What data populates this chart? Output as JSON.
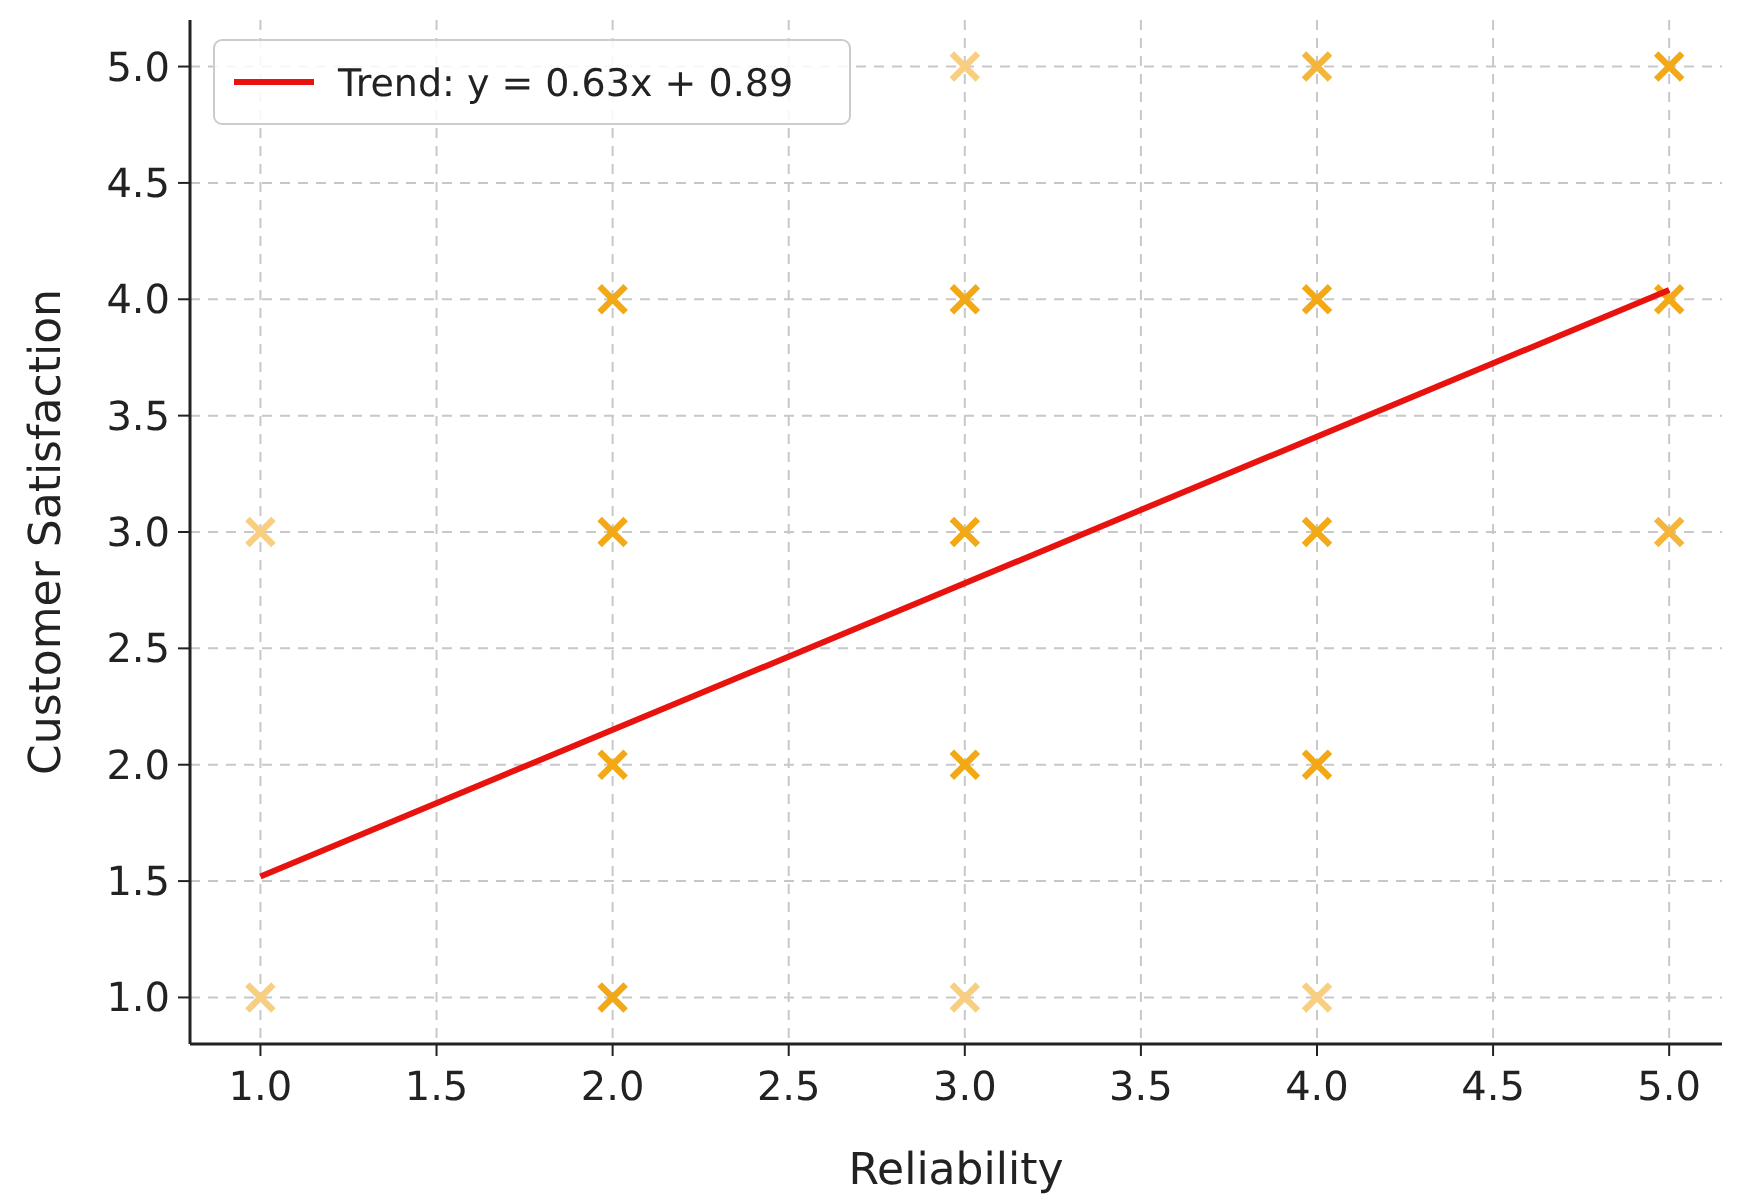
{
  "chart_data": {
    "type": "scatter",
    "xlabel": "Reliability",
    "ylabel": "Customer Satisfaction",
    "xlim": [
      0.8,
      5.15
    ],
    "ylim": [
      0.8,
      5.2
    ],
    "xticks": [
      {
        "value": 1,
        "label": "1.0"
      },
      {
        "value": 1.5,
        "label": "1.5"
      },
      {
        "value": 2,
        "label": "2.0"
      },
      {
        "value": 2.5,
        "label": "2.5"
      },
      {
        "value": 3,
        "label": "3.0"
      },
      {
        "value": 3.5,
        "label": "3.5"
      },
      {
        "value": 4,
        "label": "4.0"
      },
      {
        "value": 4.5,
        "label": "4.5"
      },
      {
        "value": 5,
        "label": "5.0"
      }
    ],
    "yticks": [
      {
        "value": 1,
        "label": "1.0"
      },
      {
        "value": 1.5,
        "label": "1.5"
      },
      {
        "value": 2,
        "label": "2.0"
      },
      {
        "value": 2.5,
        "label": "2.5"
      },
      {
        "value": 3,
        "label": "3.0"
      },
      {
        "value": 3.5,
        "label": "3.5"
      },
      {
        "value": 4,
        "label": "4.0"
      },
      {
        "value": 4.5,
        "label": "4.5"
      },
      {
        "value": 5,
        "label": "5.0"
      }
    ],
    "grid": true,
    "legend": "top left",
    "marker": "cross",
    "series": [
      {
        "x": [
          1,
          1,
          2,
          2,
          2,
          2,
          3,
          3,
          3,
          3,
          3,
          4,
          4,
          4,
          4,
          4,
          5,
          5,
          5
        ],
        "values": [
          3,
          1,
          4,
          3,
          2,
          1,
          5,
          4,
          3,
          2,
          1,
          5,
          4,
          3,
          2,
          1,
          5,
          4,
          3
        ],
        "colors": [
          "#f8cf80",
          "#f8cf80",
          "#f2a915",
          "#f2a915",
          "#f2a915",
          "#f2a915",
          "#f8cf80",
          "#f2a915",
          "#f2a915",
          "#f2a915",
          "#f8cf80",
          "#f4b63a",
          "#f2a915",
          "#f2a915",
          "#f2a915",
          "#f8cf80",
          "#f2a915",
          "#f2a915",
          "#f4b63a"
        ]
      },
      {
        "type": "line",
        "name": "Trend: y = 0.63x + 0.89",
        "color": "#e8120f",
        "x": [
          1,
          5
        ],
        "values": [
          1.52,
          4.04
        ],
        "line_style": "solid",
        "marker": "none"
      }
    ]
  }
}
